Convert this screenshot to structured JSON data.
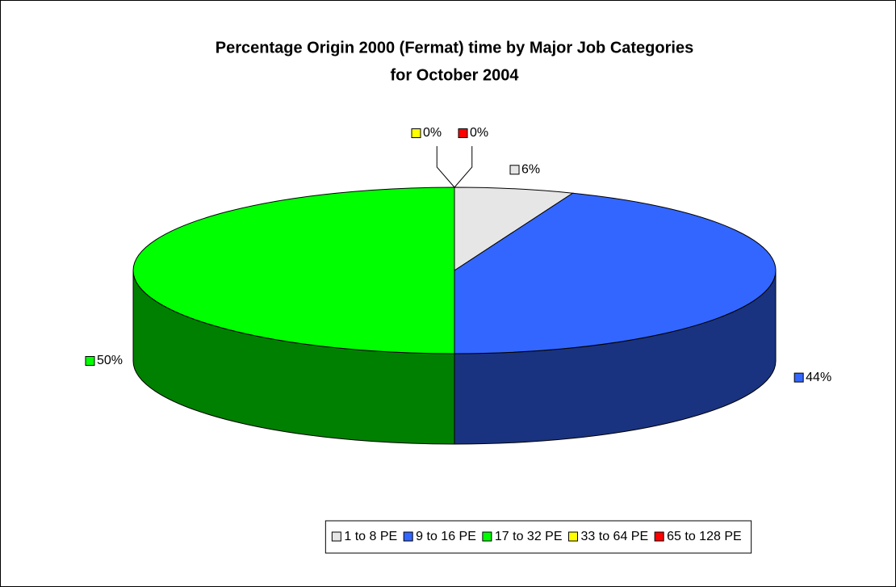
{
  "chart_data": {
    "type": "pie3d",
    "title": [
      "Percentage Origin 2000 (Fermat) time by Major Job Categories",
      "for October 2004"
    ],
    "categories": [
      "1 to 8 PE",
      "9 to 16 PE",
      "17 to 32 PE",
      "33 to 64 PE",
      "65 to 128 PE"
    ],
    "values": [
      6,
      44,
      50,
      0,
      0
    ],
    "value_labels": [
      "6%",
      "44%",
      "50%",
      "0%",
      "0%"
    ],
    "colors": [
      "#e6e6e6",
      "#3366ff",
      "#00ff00",
      "#ffff00",
      "#ff0000"
    ],
    "legend": "bottom"
  }
}
